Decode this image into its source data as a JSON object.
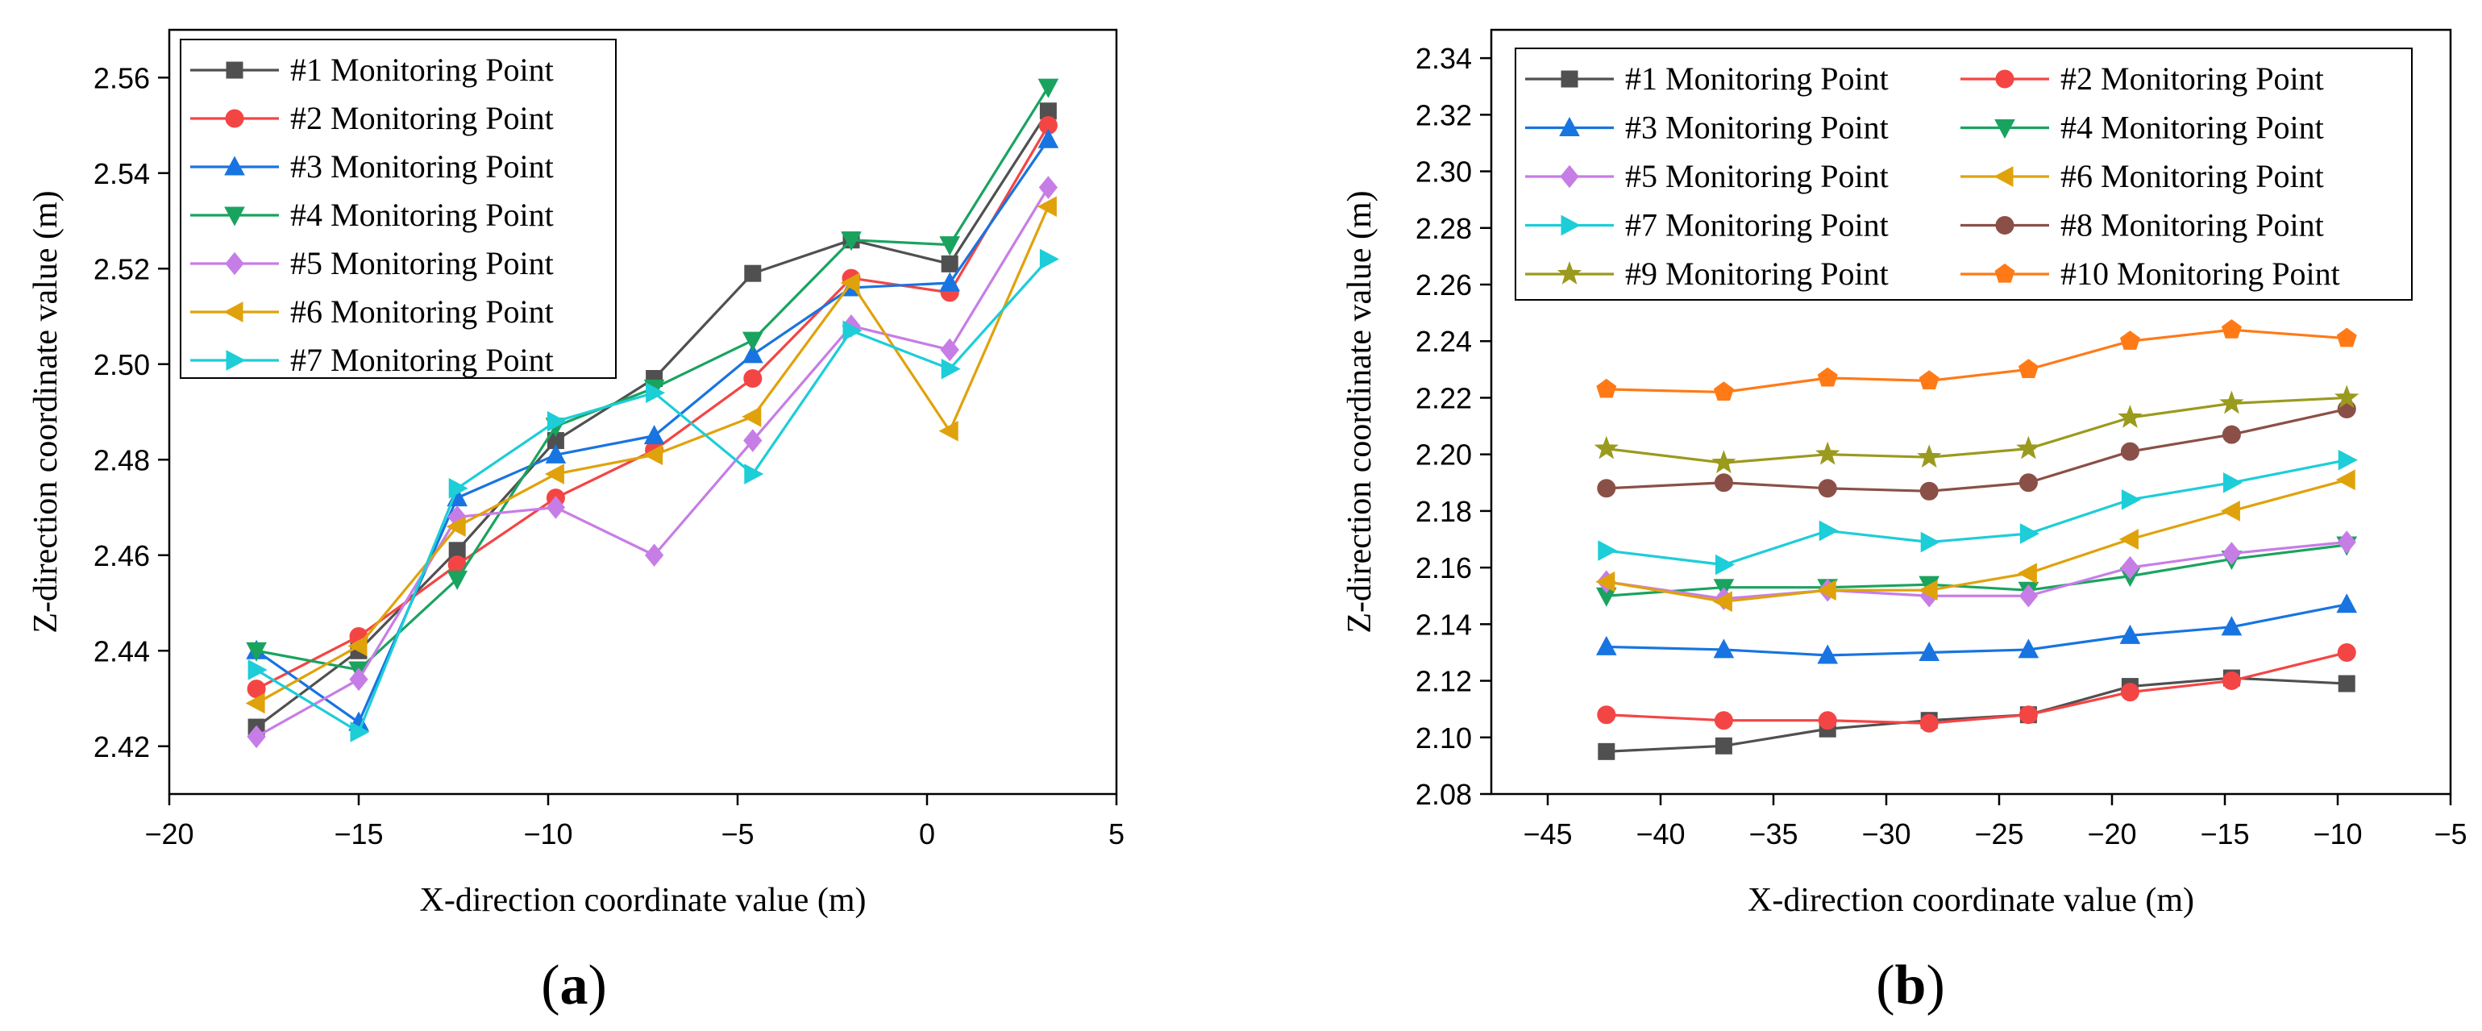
{
  "chart_data": [
    {
      "type": "line",
      "panel_label": "a",
      "xlabel": "X-direction coordinate value (m)",
      "ylabel": "Z-direction coordinate value (m)",
      "xlim": [
        -20,
        5
      ],
      "ylim": [
        2.41,
        2.57
      ],
      "xticks": [
        -20,
        -15,
        -10,
        -5,
        0,
        5
      ],
      "yticks": [
        2.42,
        2.44,
        2.46,
        2.48,
        2.5,
        2.52,
        2.54,
        2.56
      ],
      "xtick_labels": [
        "−20",
        "−15",
        "−10",
        "−5",
        "0",
        "5"
      ],
      "ytick_labels": [
        "2.42",
        "2.44",
        "2.46",
        "2.48",
        "2.50",
        "2.52",
        "2.54",
        "2.56"
      ],
      "legend_position": "top-left",
      "legend_columns": 1,
      "x": [
        -17.7,
        -15.0,
        -12.4,
        -9.8,
        -7.2,
        -4.6,
        -2.0,
        0.6,
        3.2
      ],
      "series": [
        {
          "name": "#1 Monitoring Point",
          "color": "#505050",
          "marker": "square",
          "values": [
            2.424,
            2.44,
            2.461,
            2.484,
            2.497,
            2.519,
            2.526,
            2.521,
            2.553
          ]
        },
        {
          "name": "#2 Monitoring Point",
          "color": "#f44545",
          "marker": "circle",
          "values": [
            2.432,
            2.443,
            2.458,
            2.472,
            2.482,
            2.497,
            2.518,
            2.515,
            2.55
          ]
        },
        {
          "name": "#3 Monitoring Point",
          "color": "#1874e0",
          "marker": "triangle-up",
          "values": [
            2.44,
            2.425,
            2.472,
            2.481,
            2.485,
            2.502,
            2.516,
            2.517,
            2.547
          ]
        },
        {
          "name": "#4 Monitoring Point",
          "color": "#1aa35f",
          "marker": "triangle-down",
          "values": [
            2.44,
            2.436,
            2.455,
            2.487,
            2.495,
            2.505,
            2.526,
            2.525,
            2.558
          ]
        },
        {
          "name": "#5 Monitoring Point",
          "color": "#c77de6",
          "marker": "diamond",
          "values": [
            2.422,
            2.434,
            2.468,
            2.47,
            2.46,
            2.484,
            2.508,
            2.503,
            2.537
          ]
        },
        {
          "name": "#6 Monitoring Point",
          "color": "#e0a20b",
          "marker": "triangle-left",
          "values": [
            2.429,
            2.441,
            2.466,
            2.477,
            2.481,
            2.489,
            2.517,
            2.486,
            2.533
          ]
        },
        {
          "name": "#7 Monitoring Point",
          "color": "#1dcdd8",
          "marker": "triangle-right",
          "values": [
            2.436,
            2.423,
            2.474,
            2.488,
            2.494,
            2.477,
            2.507,
            2.499,
            2.522
          ]
        }
      ]
    },
    {
      "type": "line",
      "panel_label": "b",
      "xlabel": "X-direction coordinate value (m)",
      "ylabel": "Z-direction coordinate value (m)",
      "xlim": [
        -47.5,
        -5
      ],
      "ylim": [
        2.08,
        2.35
      ],
      "xticks": [
        -45,
        -40,
        -35,
        -30,
        -25,
        -20,
        -15,
        -10,
        -5
      ],
      "yticks": [
        2.08,
        2.1,
        2.12,
        2.14,
        2.16,
        2.18,
        2.2,
        2.22,
        2.24,
        2.26,
        2.28,
        2.3,
        2.32,
        2.34
      ],
      "xtick_labels": [
        "−45",
        "−40",
        "−35",
        "−30",
        "−25",
        "−20",
        "−15",
        "−10",
        "−5"
      ],
      "ytick_labels": [
        "2.08",
        "2.10",
        "2.12",
        "2.14",
        "2.16",
        "2.18",
        "2.20",
        "2.22",
        "2.24",
        "2.26",
        "2.28",
        "2.30",
        "2.32",
        "2.34"
      ],
      "legend_position": "top-left",
      "legend_columns": 2,
      "x": [
        -42.4,
        -37.2,
        -32.6,
        -28.1,
        -23.7,
        -19.2,
        -14.7,
        -9.6
      ],
      "series": [
        {
          "name": "#1 Monitoring Point",
          "color": "#505050",
          "marker": "square",
          "values": [
            2.095,
            2.097,
            2.103,
            2.106,
            2.108,
            2.118,
            2.121,
            2.119
          ]
        },
        {
          "name": "#2 Monitoring Point",
          "color": "#f44545",
          "marker": "circle",
          "values": [
            2.108,
            2.106,
            2.106,
            2.105,
            2.108,
            2.116,
            2.12,
            2.13
          ]
        },
        {
          "name": "#3 Monitoring Point",
          "color": "#1874e0",
          "marker": "triangle-up",
          "values": [
            2.132,
            2.131,
            2.129,
            2.13,
            2.131,
            2.136,
            2.139,
            2.147
          ]
        },
        {
          "name": "#4 Monitoring Point",
          "color": "#1aa35f",
          "marker": "triangle-down",
          "values": [
            2.15,
            2.153,
            2.153,
            2.154,
            2.152,
            2.157,
            2.163,
            2.168
          ]
        },
        {
          "name": "#5 Monitoring Point",
          "color": "#c77de6",
          "marker": "diamond",
          "values": [
            2.155,
            2.149,
            2.152,
            2.15,
            2.15,
            2.16,
            2.165,
            2.169
          ]
        },
        {
          "name": "#6 Monitoring Point",
          "color": "#e0a20b",
          "marker": "triangle-left",
          "values": [
            2.155,
            2.148,
            2.152,
            2.152,
            2.158,
            2.17,
            2.18,
            2.191
          ]
        },
        {
          "name": "#7 Monitoring Point",
          "color": "#1dcdd8",
          "marker": "triangle-right",
          "values": [
            2.166,
            2.161,
            2.173,
            2.169,
            2.172,
            2.184,
            2.19,
            2.198
          ]
        },
        {
          "name": "#8 Monitoring Point",
          "color": "#8a5047",
          "marker": "circle",
          "values": [
            2.188,
            2.19,
            2.188,
            2.187,
            2.19,
            2.201,
            2.207,
            2.216
          ]
        },
        {
          "name": "#9 Monitoring Point",
          "color": "#9a9a1e",
          "marker": "star",
          "values": [
            2.202,
            2.197,
            2.2,
            2.199,
            2.202,
            2.213,
            2.218,
            2.22
          ]
        },
        {
          "name": "#10 Monitoring Point",
          "color": "#ff7a17",
          "marker": "pentagon",
          "values": [
            2.223,
            2.222,
            2.227,
            2.226,
            2.23,
            2.24,
            2.244,
            2.241
          ]
        }
      ]
    }
  ]
}
